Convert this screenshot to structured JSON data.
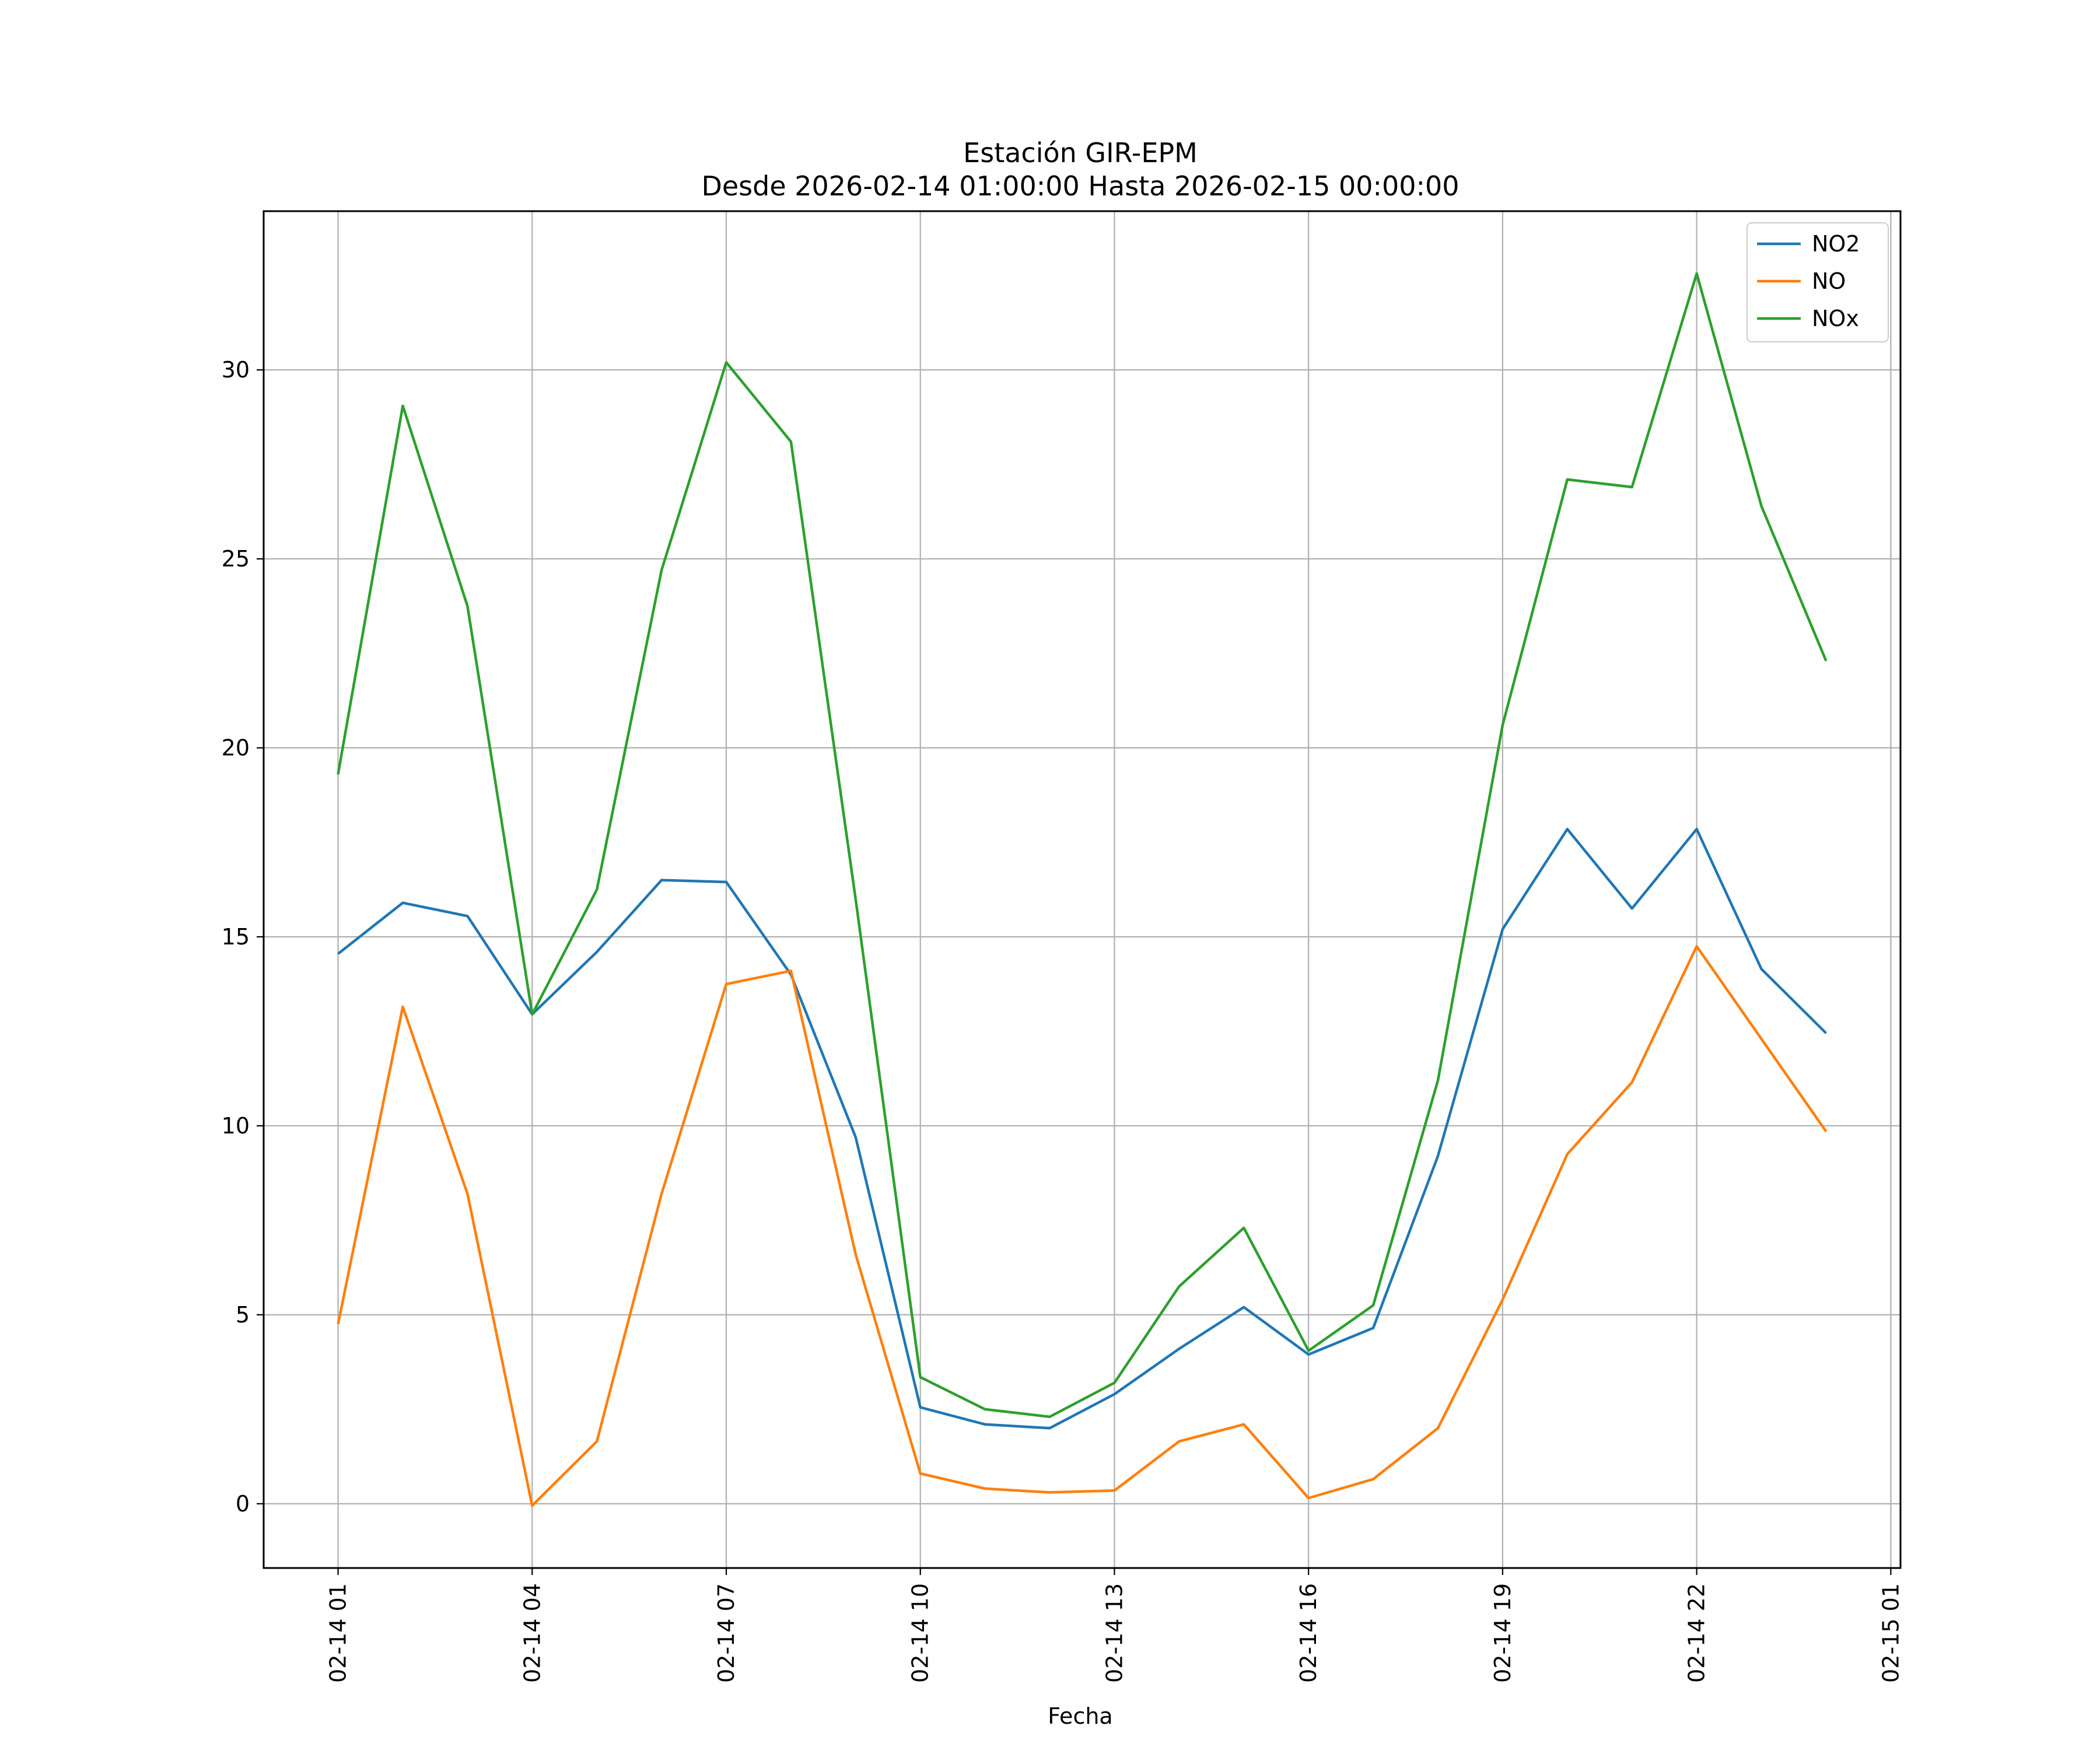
{
  "chart_data": {
    "type": "line",
    "title": "Estación GIR-EPM",
    "subtitle": "Desde 2026-02-14 01:00:00 Hasta 2026-02-15 00:00:00",
    "xlabel": "Fecha",
    "ylabel": "",
    "x": [
      "2026-02-14 01:00",
      "2026-02-14 02:00",
      "2026-02-14 03:00",
      "2026-02-14 04:00",
      "2026-02-14 05:00",
      "2026-02-14 06:00",
      "2026-02-14 07:00",
      "2026-02-14 08:00",
      "2026-02-14 09:00",
      "2026-02-14 10:00",
      "2026-02-14 11:00",
      "2026-02-14 12:00",
      "2026-02-14 13:00",
      "2026-02-14 14:00",
      "2026-02-14 15:00",
      "2026-02-14 16:00",
      "2026-02-14 17:00",
      "2026-02-14 18:00",
      "2026-02-14 19:00",
      "2026-02-14 20:00",
      "2026-02-14 21:00",
      "2026-02-14 22:00",
      "2026-02-14 23:00",
      "2026-02-15 00:00"
    ],
    "series": [
      {
        "name": "NO2",
        "color": "#1f77b4",
        "values": [
          14.55,
          15.9,
          15.55,
          12.95,
          14.6,
          16.5,
          16.45,
          14.0,
          9.7,
          2.55,
          2.1,
          2.0,
          2.9,
          4.1,
          5.2,
          3.95,
          4.65,
          9.2,
          15.2,
          17.85,
          15.75,
          17.85,
          14.15,
          12.45
        ]
      },
      {
        "name": "NO",
        "color": "#ff7f0e",
        "values": [
          4.75,
          13.15,
          8.2,
          -0.05,
          1.65,
          8.2,
          13.75,
          14.1,
          6.6,
          0.8,
          0.4,
          0.3,
          0.35,
          1.65,
          2.1,
          0.15,
          0.65,
          2.0,
          5.4,
          9.25,
          11.15,
          14.75,
          12.3,
          9.85
        ]
      },
      {
        "name": "NOx",
        "color": "#2ca02c",
        "values": [
          19.3,
          29.05,
          23.75,
          12.95,
          16.25,
          24.7,
          30.2,
          28.1,
          16.0,
          3.35,
          2.5,
          2.3,
          3.2,
          5.75,
          7.3,
          4.05,
          5.25,
          11.2,
          20.6,
          27.1,
          26.9,
          32.55,
          26.4,
          22.3
        ]
      }
    ],
    "x_ticks": [
      "02-14 01",
      "02-14 04",
      "02-14 07",
      "02-14 10",
      "02-14 13",
      "02-14 16",
      "02-14 19",
      "02-14 22",
      "02-15 01"
    ],
    "y_ticks": [
      "0",
      "5",
      "10",
      "15",
      "20",
      "25",
      "30"
    ],
    "xlim": [
      "2026-02-13 23:51",
      "2026-02-15 01:09"
    ],
    "ylim": [
      -1.7,
      34.2
    ],
    "grid": true,
    "legend_position": "top-right"
  }
}
